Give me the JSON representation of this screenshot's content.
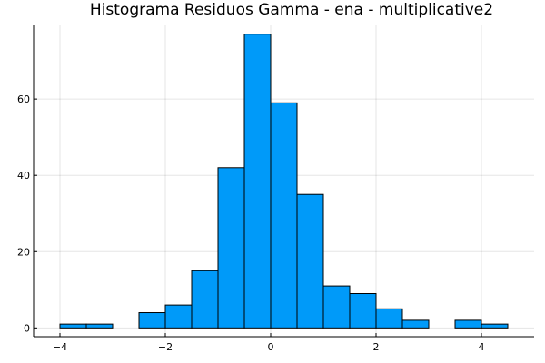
{
  "chart_data": {
    "type": "bar",
    "title": "Histograma Residuos Gamma - ena - multiplicative2",
    "xlabel": "",
    "ylabel": "",
    "bin_width": 0.5,
    "bin_starts": [
      -4.0,
      -3.5,
      -3.0,
      -2.5,
      -2.0,
      -1.5,
      -1.0,
      -0.5,
      0.0,
      0.5,
      1.0,
      1.5,
      2.0,
      2.5,
      3.0,
      3.5,
      4.0
    ],
    "values": [
      1,
      1,
      0,
      4,
      6,
      15,
      42,
      77,
      59,
      35,
      11,
      9,
      5,
      2,
      0,
      2,
      1
    ],
    "xlim": [
      -4.5,
      5.0
    ],
    "ylim": [
      -2.3,
      79.3
    ],
    "x_ticks": [
      -4,
      -2,
      0,
      2,
      4
    ],
    "x_tick_labels": [
      "−4",
      "−2",
      "0",
      "2",
      "4"
    ],
    "y_ticks": [
      0,
      20,
      40,
      60
    ],
    "y_tick_labels": [
      "0",
      "20",
      "40",
      "60"
    ],
    "grid": true,
    "legend": false,
    "bar_color": "#009af9"
  }
}
